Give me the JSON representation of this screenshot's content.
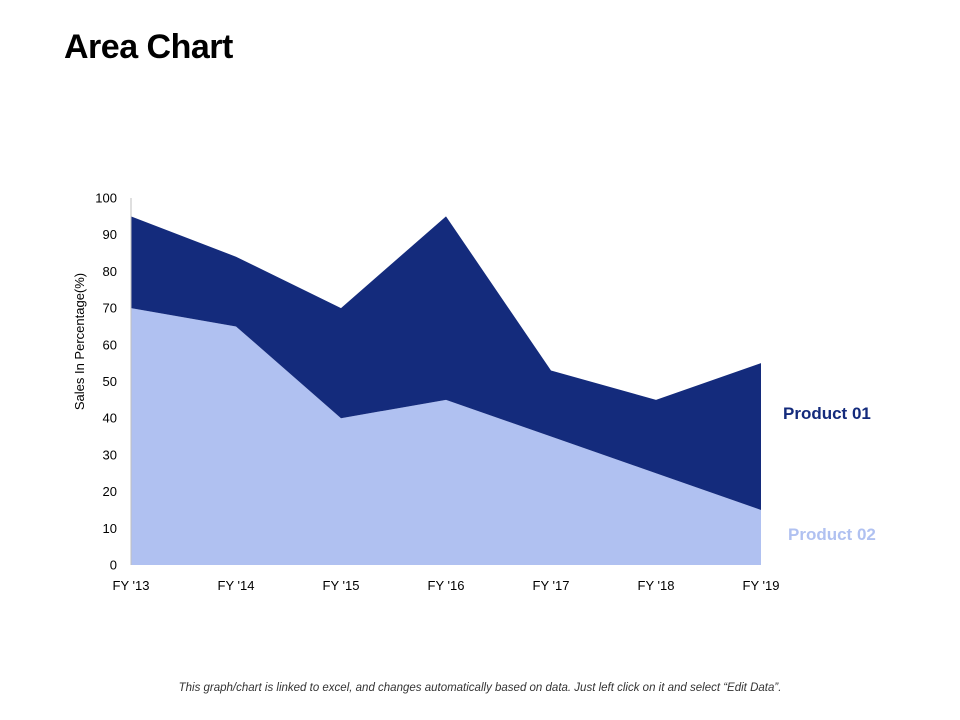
{
  "title": "Area Chart",
  "footnote": "This graph/chart is linked to excel, and changes automatically based on data. Just left click on it and select “Edit Data”.",
  "chart_data": {
    "type": "area",
    "stacked": true,
    "title": "",
    "xlabel": "",
    "ylabel": "Sales In Percentage(%)",
    "ylim": [
      0,
      100
    ],
    "yticks": [
      0,
      10,
      20,
      30,
      40,
      50,
      60,
      70,
      80,
      90,
      100
    ],
    "categories": [
      "FY '13",
      "FY '14",
      "FY '15",
      "FY '16",
      "FY '17",
      "FY '18",
      "FY '19"
    ],
    "series": [
      {
        "name": "Product 02",
        "color": "#b0c1f1",
        "values": [
          70,
          65,
          40,
          45,
          35,
          25,
          15
        ]
      },
      {
        "name": "Product 01",
        "color": "#142b7c",
        "values": [
          25,
          19,
          30,
          50,
          18,
          20,
          40
        ]
      }
    ],
    "legend": [
      {
        "label": "Product 01",
        "color": "#142b7c"
      },
      {
        "label": "Product 02",
        "color": "#b0c1f1"
      }
    ],
    "legend_position": "right"
  }
}
